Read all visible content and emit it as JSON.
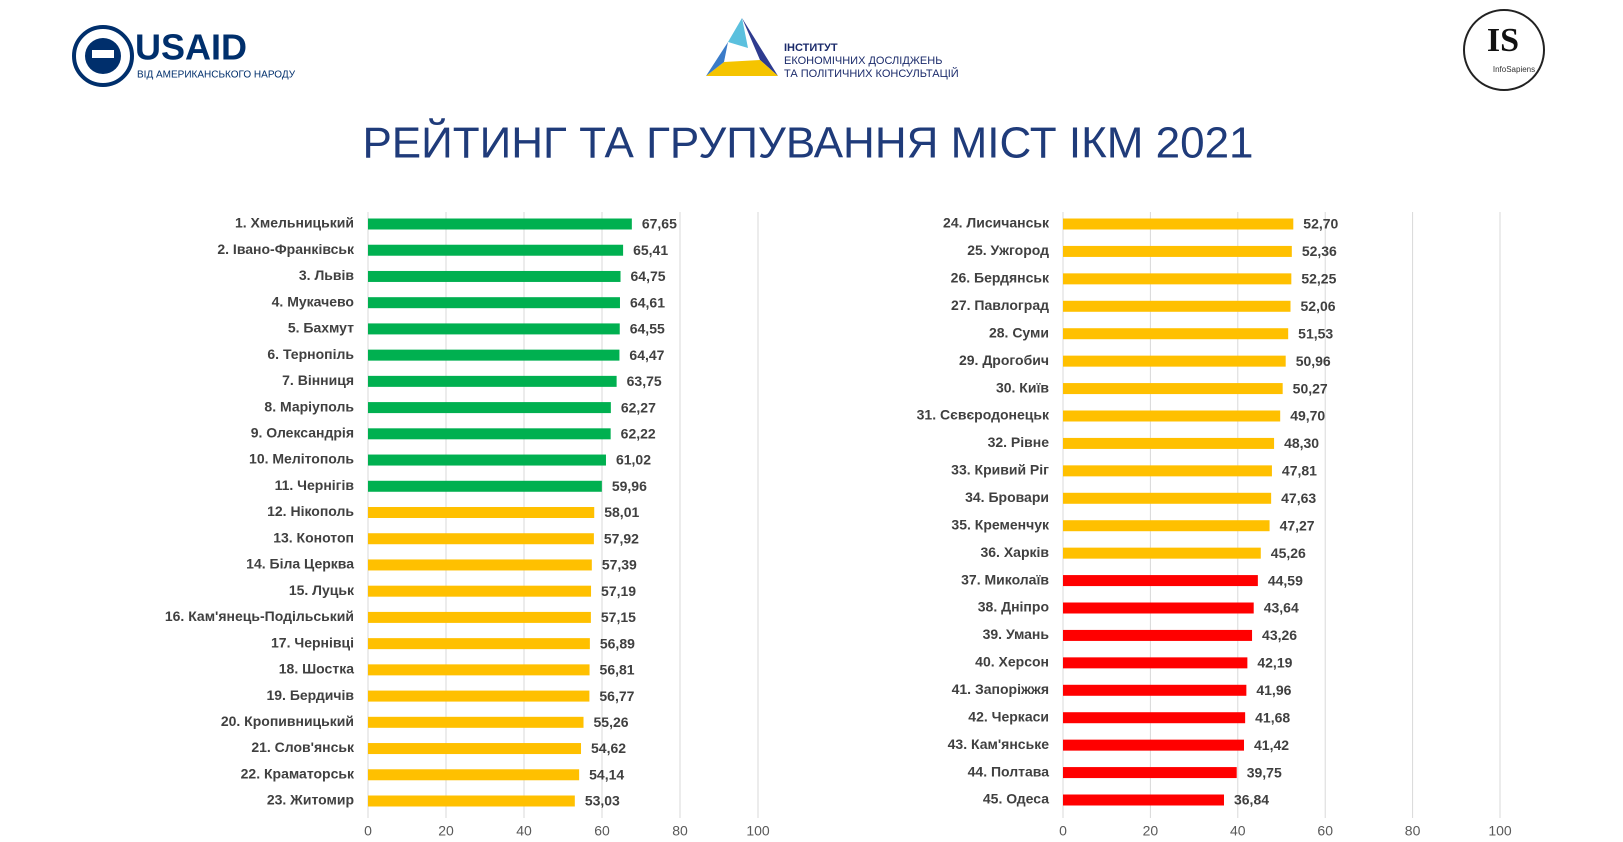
{
  "header": {
    "usaid": "USAID",
    "usaid_sub": "ВІД АМЕРИКАНСЬКОГО НАРОДУ",
    "iepc_1": "ІНСТИТУТ",
    "iepc_2": "ЕКОНОМІЧНИХ ДОСЛІДЖЕНЬ",
    "iepc_3": "ТА ПОЛІТИЧНИХ КОНСУЛЬТАЦІЙ",
    "is": "IS",
    "is_sub": "InfoSapiens",
    "title": "РЕЙТИНГ ТА ГРУПУВАННЯ МІСТ ІКМ 2021"
  },
  "chart_data": [
    {
      "type": "bar",
      "orientation": "horizontal",
      "categories": [
        "1. Хмельницький",
        "2. Івано-Франківськ",
        "3. Львів",
        "4. Мукачево",
        "5. Бахмут",
        "6. Тернопіль",
        "7. Вінниця",
        "8. Маріуполь",
        "9. Олександрія",
        "10. Мелітополь",
        "11. Чернігів",
        "12. Нікополь",
        "13. Конотоп",
        "14. Біла Церква",
        "15. Луцьк",
        "16. Кам'янець-Подільський",
        "17. Чернівці",
        "18. Шостка",
        "19. Бердичів",
        "20. Кропивницький",
        "21. Слов'янськ",
        "22. Краматорськ",
        "23. Житомир"
      ],
      "values": [
        67.65,
        65.41,
        64.75,
        64.61,
        64.55,
        64.47,
        63.75,
        62.27,
        62.22,
        61.02,
        59.96,
        58.01,
        57.92,
        57.39,
        57.19,
        57.15,
        56.89,
        56.81,
        56.77,
        55.26,
        54.62,
        54.14,
        53.03
      ],
      "value_labels": [
        "67,65",
        "65,41",
        "64,75",
        "64,61",
        "64,55",
        "64,47",
        "63,75",
        "62,27",
        "62,22",
        "61,02",
        "59,96",
        "58,01",
        "57,92",
        "57,39",
        "57,19",
        "57,15",
        "56,89",
        "56,81",
        "56,77",
        "55,26",
        "54,62",
        "54,14",
        "53,03"
      ],
      "colors": [
        "#00b050",
        "#00b050",
        "#00b050",
        "#00b050",
        "#00b050",
        "#00b050",
        "#00b050",
        "#00b050",
        "#00b050",
        "#00b050",
        "#00b050",
        "#ffc000",
        "#ffc000",
        "#ffc000",
        "#ffc000",
        "#ffc000",
        "#ffc000",
        "#ffc000",
        "#ffc000",
        "#ffc000",
        "#ffc000",
        "#ffc000",
        "#ffc000"
      ],
      "xlim": [
        0,
        100
      ],
      "xticks": [
        0,
        20,
        40,
        60,
        80,
        100
      ],
      "grid": true
    },
    {
      "type": "bar",
      "orientation": "horizontal",
      "categories": [
        "24. Лисичанськ",
        "25. Ужгород",
        "26. Бердянськ",
        "27. Павлоград",
        "28. Суми",
        "29. Дрогобич",
        "30. Київ",
        "31. Сєвєродонецьк",
        "32. Рівне",
        "33. Кривий Ріг",
        "34. Бровари",
        "35. Кременчук",
        "36. Харків",
        "37. Миколаїв",
        "38. Дніпро",
        "39. Умань",
        "40. Херсон",
        "41. Запоріжжя",
        "42. Черкаси",
        "43. Кам'янське",
        "44. Полтава",
        "45. Одеса"
      ],
      "values": [
        52.7,
        52.36,
        52.25,
        52.06,
        51.53,
        50.96,
        50.27,
        49.7,
        48.3,
        47.81,
        47.63,
        47.27,
        45.26,
        44.59,
        43.64,
        43.26,
        42.19,
        41.96,
        41.68,
        41.42,
        39.75,
        36.84
      ],
      "value_labels": [
        "52,70",
        "52,36",
        "52,25",
        "52,06",
        "51,53",
        "50,96",
        "50,27",
        "49,70",
        "48,30",
        "47,81",
        "47,63",
        "47,27",
        "45,26",
        "44,59",
        "43,64",
        "43,26",
        "42,19",
        "41,96",
        "41,68",
        "41,42",
        "39,75",
        "36,84"
      ],
      "colors": [
        "#ffc000",
        "#ffc000",
        "#ffc000",
        "#ffc000",
        "#ffc000",
        "#ffc000",
        "#ffc000",
        "#ffc000",
        "#ffc000",
        "#ffc000",
        "#ffc000",
        "#ffc000",
        "#ffc000",
        "#ff0000",
        "#ff0000",
        "#ff0000",
        "#ff0000",
        "#ff0000",
        "#ff0000",
        "#ff0000",
        "#ff0000",
        "#ff0000"
      ],
      "xlim": [
        0,
        100
      ],
      "xticks": [
        0,
        20,
        40,
        60,
        80,
        100
      ],
      "grid": true
    }
  ]
}
